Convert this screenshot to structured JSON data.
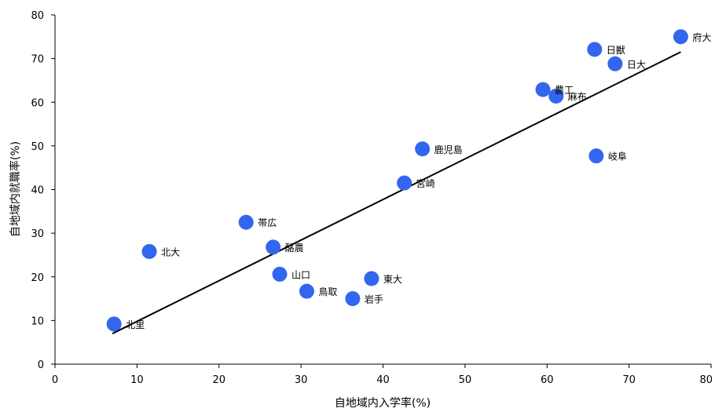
{
  "chart_data": {
    "type": "scatter",
    "xlabel": "自地域内入学率(%)",
    "ylabel": "自地域内就職率(%)",
    "xlim": [
      0,
      80
    ],
    "ylim": [
      0,
      80
    ],
    "x_ticks": [
      "0",
      "10",
      "20",
      "30",
      "40",
      "50",
      "60",
      "70",
      "80"
    ],
    "y_ticks": [
      "0",
      "10",
      "20",
      "30",
      "40",
      "50",
      "60",
      "70",
      "80"
    ],
    "grid": false,
    "legend": "none",
    "marker_color": "#3366ee",
    "trendline": {
      "x": [
        7,
        76.3
      ],
      "y": [
        7,
        71.5
      ]
    },
    "points": [
      {
        "label": "北里",
        "x": 7.2,
        "y": 9.2
      },
      {
        "label": "北大",
        "x": 11.5,
        "y": 25.8
      },
      {
        "label": "帯広",
        "x": 23.3,
        "y": 32.5
      },
      {
        "label": "酪農",
        "x": 26.6,
        "y": 26.8
      },
      {
        "label": "山口",
        "x": 27.4,
        "y": 20.6
      },
      {
        "label": "鳥取",
        "x": 30.7,
        "y": 16.7
      },
      {
        "label": "岩手",
        "x": 36.3,
        "y": 15.0
      },
      {
        "label": "東大",
        "x": 38.6,
        "y": 19.6
      },
      {
        "label": "宮崎",
        "x": 42.6,
        "y": 41.5
      },
      {
        "label": "鹿児島",
        "x": 44.8,
        "y": 49.3
      },
      {
        "label": "農工",
        "x": 59.5,
        "y": 62.9
      },
      {
        "label": "麻布",
        "x": 61.1,
        "y": 61.4
      },
      {
        "label": "日獣",
        "x": 65.8,
        "y": 72.1
      },
      {
        "label": "岐阜",
        "x": 66.0,
        "y": 47.7
      },
      {
        "label": "日大",
        "x": 68.3,
        "y": 68.8
      },
      {
        "label": "府大",
        "x": 76.3,
        "y": 75.0
      }
    ]
  }
}
